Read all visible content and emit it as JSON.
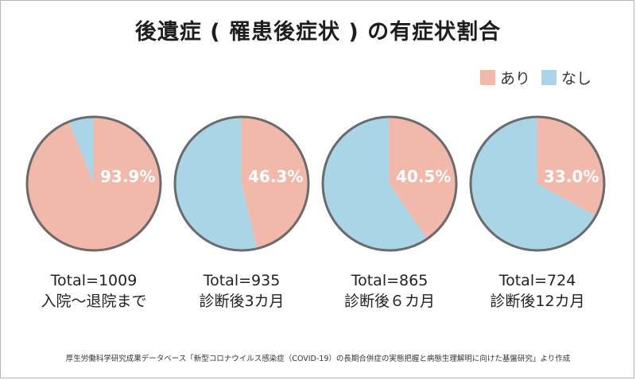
{
  "title": "後遺症 ( 罹患後症状 ) の有症状割合",
  "legend": {
    "yes_label": "あり",
    "no_label": "なし",
    "yes_color": "#f2b8a9",
    "no_color": "#a9d5e6"
  },
  "chart_data": [
    {
      "type": "pie",
      "slices": [
        {
          "label": "あり",
          "value": 93.9
        },
        {
          "label": "なし",
          "value": 6.1
        }
      ],
      "value_label": "93.9%",
      "total": "Total=1009",
      "period": "入院～退院まで"
    },
    {
      "type": "pie",
      "slices": [
        {
          "label": "あり",
          "value": 46.3
        },
        {
          "label": "なし",
          "value": 53.7
        }
      ],
      "value_label": "46.3%",
      "total": "Total=935",
      "period": "診断後3カ月"
    },
    {
      "type": "pie",
      "slices": [
        {
          "label": "あり",
          "value": 40.5
        },
        {
          "label": "なし",
          "value": 59.5
        }
      ],
      "value_label": "40.5%",
      "total": "Total=865",
      "period": "診断後６カ月"
    },
    {
      "type": "pie",
      "slices": [
        {
          "label": "あり",
          "value": 33.0
        },
        {
          "label": "なし",
          "value": 67.0
        }
      ],
      "value_label": "33.0%",
      "total": "Total=724",
      "period": "診断後12カ月"
    }
  ],
  "source": "厚生労働科学研究成果データベース「新型コロナウイルス感染症（COVID-19）の長期合併症の実態把握と病態生理解明に向けた基盤研究」より作成"
}
